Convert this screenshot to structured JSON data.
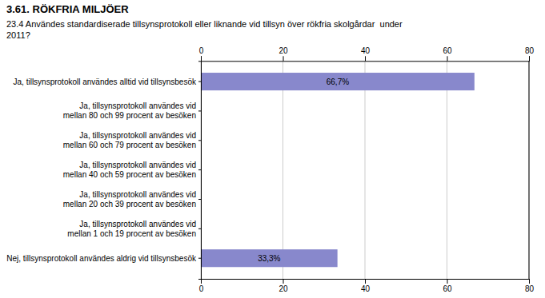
{
  "chart_data": {
    "type": "bar",
    "orientation": "horizontal",
    "title": "3.61. RÖKFRIA MILJÖER",
    "subtitle": "23.4 Användes standardiserade tillsynsprotokoll eller liknande vid tillsyn över rökfria skolgårdar  under\n2011?",
    "categories": [
      "Ja, tillsynsprotokoll användes alltid vid tillsynsbesök",
      "Ja, tillsynsprotokoll användes vid\nmellan 80 och 99 procent av besöken",
      "Ja, tillsynsprotokoll användes vid\nmellan 60 och 79 procent av besöken",
      "Ja, tillsynsprotokoll användes vid\nmellan 40 och 59 procent av besöken",
      "Ja, tillsynsprotokoll användes vid\nmellan 20 och 39 procent av besöken",
      "Ja, tillsynsprotokoll användes vid\nmellan 1 och 19 procent av besöken",
      "Nej, tillsynsprotokoll användes aldrig vid tillsynsbesök"
    ],
    "values": [
      66.7,
      0,
      0,
      0,
      0,
      0,
      33.3
    ],
    "value_labels": [
      "66,7%",
      null,
      null,
      null,
      null,
      null,
      "33,3%"
    ],
    "data_labels": true,
    "color": "#8888cc",
    "xlim": [
      0,
      80
    ],
    "xticks": [
      0,
      20,
      40,
      60,
      80
    ],
    "grid": true
  }
}
